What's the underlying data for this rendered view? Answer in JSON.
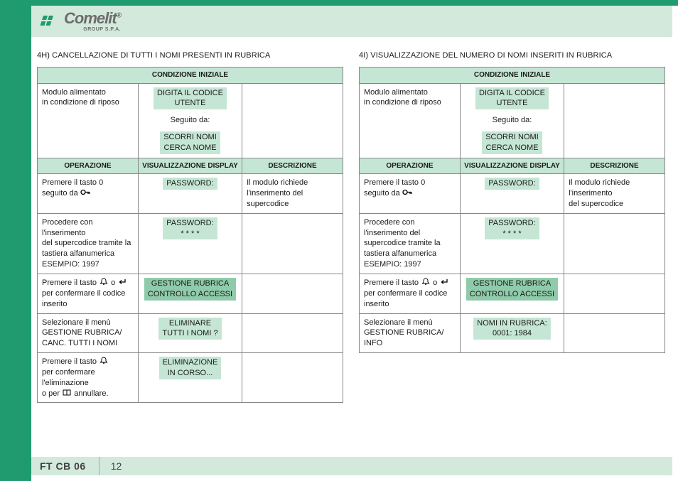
{
  "branding": {
    "name": "Comelit",
    "reg": "®",
    "sub": "GROUP S.P.A."
  },
  "footer": {
    "code": "FT CB 06",
    "page": "12"
  },
  "left": {
    "title": "4H) CANCELLAZIONE DI TUTTI I NOMI PRESENTI IN RUBRICA",
    "th_initial": "CONDIZIONE INIZIALE",
    "initial_op": "Modulo alimentato\nin condizione di riposo",
    "initial_disp_a": "DIGITA IL CODICE\nUTENTE",
    "initial_seguito": "Seguito da:",
    "initial_disp_b": "SCORRI NOMI\nCERCA NOME",
    "th_op": "OPERAZIONE",
    "th_disp": "VISUALIZZAZIONE DISPLAY",
    "th_desc": "DESCRIZIONE",
    "rows": [
      {
        "op_pre": "Premere il tasto 0\nseguito da",
        "op_icon": "key",
        "disp": "PASSWORD:",
        "disp_cls": "tag",
        "desc": "Il modulo richiede\nl'inserimento del supercodice"
      },
      {
        "op": "Procedere con l'inserimento\ndel supercodice tramite la\ntastiera alfanumerica\nESEMPIO: 1997",
        "disp": "PASSWORD:\n* * * *",
        "disp_cls": "tag",
        "desc": ""
      },
      {
        "op_pre": "Premere il tasto",
        "op_icon": "bell",
        "op_mid": " o ",
        "op_icon2": "enter",
        "op_post": "\nper confermare il codice\ninserito",
        "disp": "GESTIONE RUBRICA\nCONTROLLO ACCESSI",
        "disp_cls": "tag-strong",
        "desc": ""
      },
      {
        "op": "Selezionare il menù\nGESTIONE RUBRICA/\nCANC. TUTTI I NOMI",
        "disp": "ELIMINARE\nTUTTI I NOMI ?",
        "disp_cls": "tag",
        "desc": ""
      },
      {
        "op_pre": "Premere il tasto",
        "op_icon": "bell",
        "op_post": "\nper confermare\nl'eliminazione\no per ",
        "op_icon2": "book",
        "op_post2": " annullare.",
        "disp": "ELIMINAZIONE\nIN CORSO...",
        "disp_cls": "tag",
        "desc": ""
      }
    ]
  },
  "right": {
    "title": "4I) VISUALIZZAZIONE DEL NUMERO DI NOMI INSERITI IN RUBRICA",
    "th_initial": "CONDIZIONE INIZIALE",
    "initial_op": "Modulo alimentato\nin condizione di riposo",
    "initial_disp_a": "DIGITA IL CODICE\nUTENTE",
    "initial_seguito": "Seguito da:",
    "initial_disp_b": "SCORRI NOMI\nCERCA NOME",
    "th_op": "OPERAZIONE",
    "th_disp": "VISUALIZZAZIONE DISPLAY",
    "th_desc": "DESCRIZIONE",
    "rows": [
      {
        "op_pre": "Premere il tasto 0\nseguito da",
        "op_icon": "key",
        "disp": "PASSWORD:",
        "disp_cls": "tag",
        "desc": "Il modulo richiede\nl'inserimento\ndel supercodice"
      },
      {
        "op": "Procedere con\nl'inserimento del\nsupercodice tramite la\ntastiera alfanumerica\nESEMPIO: 1997",
        "disp": "PASSWORD:\n* * * *",
        "disp_cls": "tag",
        "desc": ""
      },
      {
        "op_pre": "Premere il tasto",
        "op_icon": "bell",
        "op_mid": " o ",
        "op_icon2": "enter",
        "op_post": "\nper confermare il codice\ninserito",
        "disp": "GESTIONE RUBRICA\nCONTROLLO ACCESSI",
        "disp_cls": "tag-strong",
        "desc": ""
      },
      {
        "op": "Selezionare il menù\nGESTIONE RUBRICA/\nINFO",
        "disp": "NOMI IN RUBRICA:\n0001: 1984",
        "disp_cls": "tag",
        "desc": ""
      }
    ]
  },
  "colors": {
    "green_dark": "#1f9b6f",
    "green_pale": "#d3e9dc",
    "green_tag": "#c5e6d4",
    "green_tag_strong": "#8fcbaa",
    "border": "#878787"
  }
}
